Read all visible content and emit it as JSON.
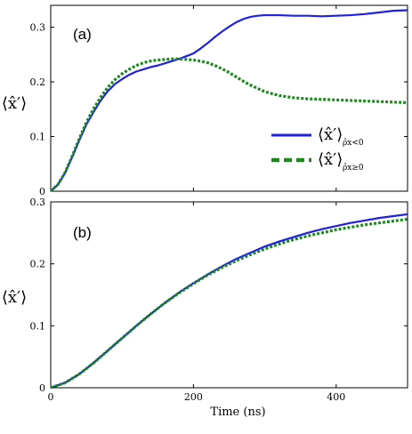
{
  "chart_data": [
    {
      "type": "line",
      "panel_label": "(a)",
      "ylabel": "⟨x̂′⟩",
      "xlim": [
        0,
        500
      ],
      "ylim": [
        0,
        0.34
      ],
      "xticks": [
        0,
        200,
        400
      ],
      "yticks": [
        0,
        0.1,
        0.2,
        0.3
      ],
      "ytick_labels": [
        "0",
        "0.1",
        "0.2",
        "0.3"
      ],
      "xtick_labels": [
        "",
        "",
        ""
      ],
      "legend_position": "right",
      "series": [
        {
          "name": "⟨x̂′⟩ρ̂x<0",
          "legend_main": "⟨x̂′⟩",
          "legend_sub": "ρ̂x<0",
          "color": "#1f1fe6",
          "style": "solid",
          "x": [
            0,
            10,
            20,
            30,
            40,
            50,
            60,
            70,
            80,
            90,
            100,
            110,
            120,
            130,
            140,
            150,
            160,
            170,
            180,
            190,
            200,
            210,
            220,
            230,
            240,
            250,
            260,
            270,
            280,
            290,
            300,
            320,
            340,
            360,
            380,
            400,
            420,
            440,
            460,
            480,
            500
          ],
          "values": [
            0,
            0.012,
            0.033,
            0.062,
            0.093,
            0.122,
            0.145,
            0.166,
            0.183,
            0.196,
            0.205,
            0.213,
            0.219,
            0.223,
            0.227,
            0.23,
            0.234,
            0.238,
            0.242,
            0.247,
            0.252,
            0.261,
            0.271,
            0.282,
            0.292,
            0.301,
            0.309,
            0.315,
            0.319,
            0.321,
            0.322,
            0.322,
            0.321,
            0.321,
            0.32,
            0.321,
            0.322,
            0.324,
            0.327,
            0.33,
            0.331
          ]
        },
        {
          "name": "⟨x̂′⟩ρ̂x≥0",
          "legend_main": "⟨x̂′⟩",
          "legend_sub": "ρ̂x≥0",
          "color": "#1a8a1a",
          "style": "dotted",
          "x": [
            0,
            10,
            20,
            30,
            40,
            50,
            60,
            70,
            80,
            90,
            100,
            110,
            120,
            130,
            140,
            150,
            160,
            170,
            180,
            190,
            200,
            210,
            220,
            230,
            240,
            250,
            260,
            270,
            280,
            290,
            300,
            320,
            340,
            360,
            380,
            400,
            420,
            440,
            460,
            480,
            500
          ],
          "values": [
            0,
            0.012,
            0.034,
            0.064,
            0.096,
            0.126,
            0.151,
            0.172,
            0.19,
            0.204,
            0.215,
            0.223,
            0.23,
            0.235,
            0.238,
            0.24,
            0.241,
            0.242,
            0.242,
            0.241,
            0.24,
            0.238,
            0.235,
            0.23,
            0.224,
            0.217,
            0.209,
            0.201,
            0.194,
            0.188,
            0.182,
            0.175,
            0.171,
            0.169,
            0.168,
            0.167,
            0.166,
            0.165,
            0.164,
            0.163,
            0.162
          ]
        }
      ]
    },
    {
      "type": "line",
      "panel_label": "(b)",
      "ylabel": "⟨x̂′⟩",
      "xlabel": "Time (ns)",
      "xlim": [
        0,
        500
      ],
      "ylim": [
        0,
        0.3
      ],
      "xticks": [
        0,
        200,
        400
      ],
      "xtick_labels": [
        "0",
        "200",
        "400"
      ],
      "yticks": [
        0,
        0.1,
        0.2,
        0.3
      ],
      "ytick_labels": [
        "0",
        "0.1",
        "0.2",
        "0.3"
      ],
      "series": [
        {
          "color": "#1f1fe6",
          "style": "solid",
          "x": [
            0,
            20,
            40,
            60,
            80,
            100,
            120,
            140,
            160,
            180,
            200,
            220,
            240,
            260,
            280,
            300,
            320,
            340,
            360,
            380,
            400,
            420,
            440,
            460,
            480,
            500
          ],
          "values": [
            0,
            0.008,
            0.022,
            0.04,
            0.06,
            0.08,
            0.1,
            0.119,
            0.137,
            0.154,
            0.169,
            0.183,
            0.196,
            0.208,
            0.218,
            0.228,
            0.236,
            0.243,
            0.25,
            0.256,
            0.261,
            0.266,
            0.27,
            0.274,
            0.277,
            0.28
          ]
        },
        {
          "color": "#1a8a1a",
          "style": "dotted",
          "x": [
            0,
            20,
            40,
            60,
            80,
            100,
            120,
            140,
            160,
            180,
            200,
            220,
            240,
            260,
            280,
            300,
            320,
            340,
            360,
            380,
            400,
            420,
            440,
            460,
            480,
            500
          ],
          "values": [
            0,
            0.008,
            0.022,
            0.04,
            0.06,
            0.08,
            0.1,
            0.119,
            0.137,
            0.153,
            0.168,
            0.182,
            0.194,
            0.205,
            0.215,
            0.224,
            0.232,
            0.239,
            0.245,
            0.25,
            0.255,
            0.259,
            0.263,
            0.266,
            0.269,
            0.272
          ]
        }
      ]
    }
  ]
}
